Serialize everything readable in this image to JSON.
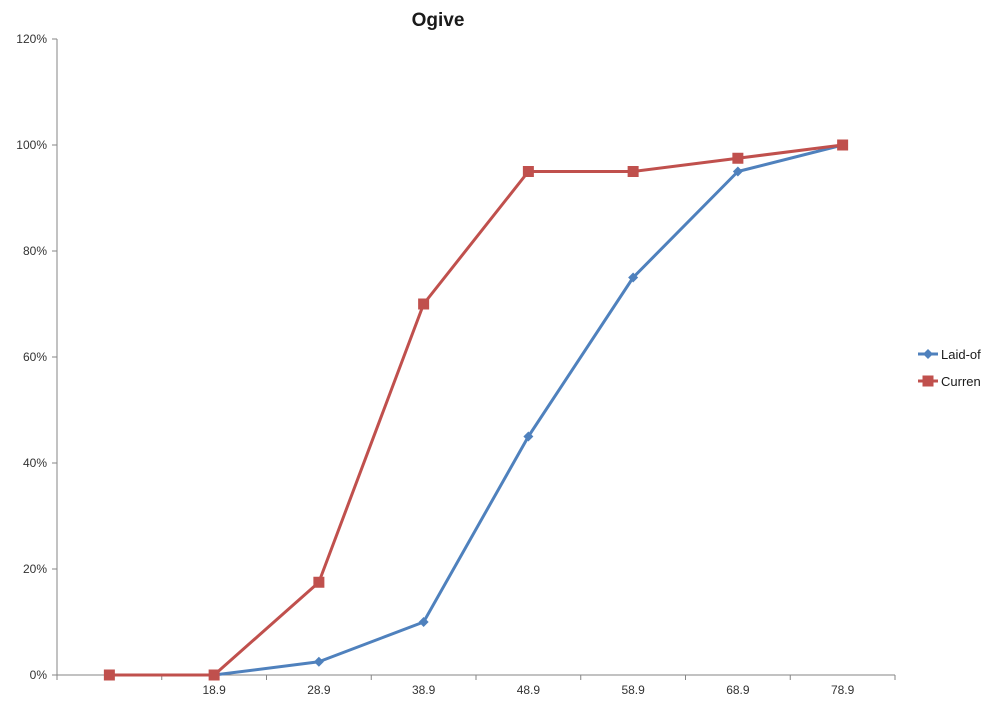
{
  "chart_data": {
    "type": "line",
    "title": "Ogive",
    "categories": [
      "",
      "18.9",
      "28.9",
      "38.9",
      "48.9",
      "58.9",
      "68.9",
      "78.9"
    ],
    "ylim": [
      0,
      1.2
    ],
    "yticks": [
      0,
      0.2,
      0.4,
      0.6,
      0.8,
      1.0,
      1.2
    ],
    "ytick_labels": [
      "0%",
      "20%",
      "40%",
      "60%",
      "80%",
      "100%",
      "120%"
    ],
    "grid": false,
    "legend_position": "right",
    "series": [
      {
        "name": "Laid-of",
        "color": "#4f81bd",
        "marker": "diamond",
        "values": [
          null,
          0,
          0.025,
          0.1,
          0.45,
          0.75,
          0.95,
          1.0
        ]
      },
      {
        "name": "Curren",
        "color": "#c0504d",
        "marker": "square",
        "values": [
          0,
          0,
          0.175,
          0.7,
          0.95,
          0.95,
          0.975,
          1.0
        ]
      }
    ]
  }
}
